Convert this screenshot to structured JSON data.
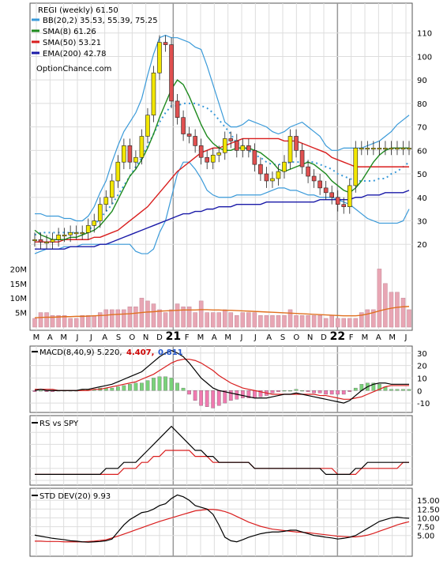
{
  "chart_data": [
    {
      "type": "line",
      "panel": "price",
      "title": "REGI (weekly) 61.50",
      "x_labels": [
        "M",
        "A",
        "M",
        "J",
        "J",
        "A",
        "S",
        "O",
        "N",
        "D",
        "21",
        "F",
        "M",
        "A",
        "M",
        "J",
        "J",
        "A",
        "S",
        "O",
        "N",
        "D",
        "22",
        "F",
        "M",
        "A",
        "M",
        "J"
      ],
      "ylim": [
        13,
        120
      ],
      "y_ticks": [
        20,
        30,
        40,
        50,
        60,
        70,
        80,
        90,
        100,
        110
      ],
      "volume_ticks": [
        "20M",
        "15M",
        "10M",
        "5M"
      ],
      "grid": true,
      "legend_position": "top-left",
      "legend": [
        {
          "label": "BB(20,2) 35.53, 55.39, 75.25",
          "color": "#3a9ad9"
        },
        {
          "label": "SMA(8) 61.26",
          "color": "#1e8a1e"
        },
        {
          "label": "SMA(50) 53.21",
          "color": "#d91e1e"
        },
        {
          "label": "EMA(200) 42.78",
          "color": "#1a1aa8"
        }
      ],
      "watermark": "OptionChance.com",
      "series": [
        {
          "name": "Close",
          "values": [
            22,
            21,
            21,
            22,
            24,
            24,
            25,
            25,
            25,
            28,
            30,
            37,
            40,
            47,
            55,
            62,
            55,
            57,
            66,
            75,
            93,
            106,
            105,
            81,
            74,
            67,
            66,
            62,
            57,
            55,
            58,
            59,
            65,
            64,
            60,
            62,
            60,
            54,
            50,
            47,
            48,
            51,
            55,
            66,
            60,
            53,
            49,
            47,
            44,
            42,
            40,
            37,
            36,
            45,
            61,
            61,
            61,
            61,
            61,
            61,
            61,
            61,
            61,
            61
          ]
        },
        {
          "name": "SMA(8)",
          "values": [
            26,
            24,
            23,
            22,
            22,
            22,
            23,
            23,
            24,
            25,
            26,
            28,
            31,
            34,
            39,
            44,
            49,
            52,
            56,
            61,
            67,
            74,
            80,
            86,
            90,
            88,
            83,
            77,
            71,
            66,
            63,
            61,
            60,
            60,
            61,
            61,
            61,
            60,
            59,
            57,
            55,
            52,
            51,
            52,
            53,
            54,
            55,
            54,
            52,
            50,
            47,
            45,
            43,
            42,
            44,
            47,
            51,
            55,
            58,
            60,
            61,
            61,
            61,
            61
          ]
        },
        {
          "name": "SMA(50)",
          "values": [
            21,
            21,
            21,
            21,
            21,
            22,
            22,
            22,
            22,
            22,
            23,
            23,
            24,
            25,
            26,
            28,
            30,
            32,
            34,
            36,
            39,
            42,
            45,
            48,
            51,
            53,
            55,
            57,
            59,
            60,
            61,
            61,
            62,
            63,
            64,
            65,
            65,
            65,
            65,
            65,
            65,
            65,
            64,
            64,
            64,
            63,
            62,
            61,
            60,
            59,
            57,
            56,
            55,
            54,
            53,
            53,
            53,
            53,
            53,
            53,
            53,
            53,
            53,
            53
          ]
        },
        {
          "name": "EMA(200)",
          "values": [
            18,
            18,
            18,
            18,
            18,
            18,
            19,
            19,
            19,
            19,
            19,
            20,
            20,
            21,
            22,
            23,
            24,
            25,
            26,
            27,
            28,
            29,
            30,
            31,
            32,
            33,
            33,
            34,
            34,
            35,
            35,
            36,
            36,
            36,
            37,
            37,
            37,
            37,
            37,
            38,
            38,
            38,
            38,
            38,
            38,
            38,
            38,
            38,
            39,
            39,
            39,
            39,
            39,
            39,
            40,
            40,
            41,
            41,
            41,
            42,
            42,
            42,
            42,
            43
          ]
        },
        {
          "name": "BB upper",
          "values": [
            33,
            33,
            32,
            32,
            32,
            31,
            31,
            30,
            30,
            32,
            36,
            42,
            47,
            55,
            62,
            68,
            72,
            76,
            82,
            92,
            101,
            108,
            109,
            108,
            108,
            107,
            106,
            104,
            103,
            96,
            88,
            80,
            72,
            70,
            70,
            71,
            73,
            72,
            71,
            70,
            68,
            67,
            68,
            70,
            71,
            72,
            70,
            68,
            66,
            62,
            60,
            60,
            61,
            61,
            61,
            61,
            62,
            63,
            64,
            66,
            68,
            71,
            73,
            75
          ]
        },
        {
          "name": "BB lower",
          "values": [
            16,
            17,
            18,
            18,
            18,
            19,
            19,
            19,
            20,
            20,
            20,
            20,
            20,
            20,
            20,
            20,
            20,
            17,
            16,
            16,
            18,
            25,
            30,
            40,
            50,
            55,
            55,
            52,
            48,
            43,
            41,
            40,
            40,
            40,
            41,
            41,
            41,
            41,
            41,
            42,
            43,
            44,
            44,
            43,
            43,
            42,
            41,
            41,
            40,
            40,
            40,
            39,
            38,
            37,
            35,
            33,
            31,
            30,
            29,
            29,
            29,
            29,
            30,
            35
          ]
        },
        {
          "name": "BB mid",
          "values": [
            24,
            25,
            25,
            25,
            25,
            25,
            25,
            25,
            25,
            26,
            28,
            31,
            34,
            37,
            41,
            45,
            49,
            53,
            57,
            62,
            67,
            72,
            76,
            79,
            79,
            80,
            80,
            80,
            79,
            78,
            76,
            73,
            70,
            67,
            63,
            62,
            60,
            58,
            57,
            55,
            54,
            54,
            54,
            55,
            55,
            55,
            55,
            55,
            54,
            53,
            52,
            50,
            49,
            48,
            47,
            47,
            47,
            47,
            48,
            48,
            50,
            51,
            53,
            55
          ]
        }
      ]
    },
    {
      "type": "bar",
      "panel": "volume",
      "values": [
        3,
        5,
        5,
        4,
        4,
        4,
        3,
        3,
        4,
        4,
        4,
        5,
        6,
        6,
        6,
        6,
        7,
        7,
        10,
        9,
        8,
        6,
        5,
        6,
        8,
        7,
        7,
        5,
        9,
        5,
        5,
        5,
        6,
        5,
        4,
        5,
        5,
        5,
        4,
        4,
        4,
        4,
        4,
        6,
        4,
        4,
        4,
        4,
        4,
        3,
        4,
        3,
        3,
        3,
        3,
        5,
        6,
        6,
        20,
        15,
        12,
        12,
        10,
        6
      ],
      "line_name": "Volume average",
      "line_values": [
        3.2,
        3.3,
        3.4,
        3.4,
        3.5,
        3.6,
        3.6,
        3.7,
        3.7,
        3.8,
        3.9,
        4,
        4.1,
        4.3,
        4.4,
        4.5,
        4.6,
        4.8,
        5.0,
        5.2,
        5.3,
        5.5,
        5.6,
        5.7,
        5.8,
        5.9,
        5.9,
        5.9,
        6.0,
        6.0,
        5.9,
        5.9,
        5.8,
        5.8,
        5.7,
        5.6,
        5.5,
        5.4,
        5.3,
        5.2,
        5.1,
        5.0,
        4.9,
        4.8,
        4.7,
        4.6,
        4.5,
        4.4,
        4.3,
        4.2,
        4.1,
        4.0,
        3.9,
        3.9,
        3.9,
        4.1,
        4.5,
        5.0,
        5.6,
        6.1,
        6.5,
        6.8,
        7.0,
        7.1
      ],
      "ylim": [
        0,
        25
      ]
    },
    {
      "type": "line",
      "panel": "macd",
      "label": "MACD(8,40,9) 5.220,",
      "value_signal": "4.407,",
      "value_hist": "0.811",
      "ylim": [
        -15,
        33
      ],
      "y_ticks": [
        30,
        20,
        10,
        0,
        -10
      ],
      "series": [
        {
          "name": "MACD",
          "values": [
            0,
            1,
            0,
            0,
            0,
            0,
            0,
            0,
            1,
            1,
            2,
            3,
            4,
            5,
            7,
            9,
            11,
            13,
            15,
            19,
            23,
            27,
            30,
            32,
            30,
            27,
            22,
            16,
            10,
            6,
            2,
            0,
            -1,
            -2,
            -3,
            -4,
            -5,
            -6,
            -6,
            -6,
            -5,
            -4,
            -3,
            -3,
            -2,
            -3,
            -4,
            -5,
            -6,
            -7,
            -8,
            -9,
            -10,
            -8,
            -4,
            0,
            3,
            5,
            6,
            6,
            5,
            5,
            5,
            5
          ]
        },
        {
          "name": "Signal",
          "values": [
            1,
            1,
            1,
            1,
            0,
            0,
            0,
            0,
            0,
            0,
            1,
            1,
            2,
            3,
            4,
            5,
            6,
            7,
            9,
            11,
            13,
            16,
            19,
            22,
            24,
            25,
            25,
            24,
            22,
            19,
            16,
            12,
            9,
            6,
            4,
            2,
            1,
            0,
            -1,
            -2,
            -3,
            -3,
            -3,
            -3,
            -3,
            -3,
            -3,
            -3,
            -4,
            -4,
            -5,
            -6,
            -7,
            -7,
            -6,
            -5,
            -3,
            -1,
            1,
            3,
            4,
            4,
            4,
            4
          ]
        },
        {
          "name": "Histogram",
          "values": [
            -1,
            0,
            -1,
            -1,
            0,
            0,
            0,
            0,
            1,
            1,
            1,
            2,
            2,
            2,
            3,
            4,
            5,
            6,
            6,
            8,
            10,
            11,
            11,
            10,
            6,
            2,
            -3,
            -8,
            -12,
            -13,
            -14,
            -12,
            -10,
            -8,
            -7,
            -6,
            -6,
            -6,
            -5,
            -4,
            -2,
            -1,
            0,
            0,
            1,
            0,
            -1,
            -2,
            -2,
            -3,
            -3,
            -3,
            -3,
            -1,
            2,
            5,
            6,
            6,
            5,
            3,
            1,
            1,
            1,
            1
          ]
        }
      ]
    },
    {
      "type": "line",
      "panel": "rs",
      "label": "RS vs SPY",
      "ylim": [
        0,
        10
      ],
      "series": [
        {
          "name": "RS",
          "values": [
            1,
            1,
            1,
            1,
            1,
            1,
            1,
            1,
            1,
            1,
            1,
            1,
            2,
            2,
            2,
            3,
            3,
            3,
            4,
            5,
            6,
            7,
            8,
            9,
            8,
            7,
            6,
            5,
            5,
            4,
            4,
            3,
            3,
            3,
            3,
            3,
            3,
            2,
            2,
            2,
            2,
            2,
            2,
            2,
            2,
            2,
            2,
            2,
            2,
            1,
            1,
            1,
            1,
            1,
            2,
            2,
            3,
            3,
            3,
            3,
            3,
            3,
            3,
            3
          ]
        },
        {
          "name": "RS average",
          "values": [
            1,
            1,
            1,
            1,
            1,
            1,
            1,
            1,
            1,
            1,
            1,
            1,
            1,
            1,
            1,
            2,
            2,
            2,
            3,
            3,
            4,
            4,
            5,
            5,
            5,
            5,
            5,
            4,
            4,
            4,
            3,
            3,
            3,
            3,
            3,
            3,
            3,
            2,
            2,
            2,
            2,
            2,
            2,
            2,
            2,
            2,
            2,
            2,
            2,
            2,
            2,
            1,
            1,
            1,
            1,
            2,
            2,
            2,
            2,
            2,
            2,
            2,
            3,
            3
          ]
        }
      ]
    },
    {
      "type": "line",
      "panel": "std",
      "label": "STD DEV(20) 9.93",
      "ylim": [
        0,
        17.5
      ],
      "y_ticks": [
        15,
        12.5,
        10,
        7.5,
        5
      ],
      "y_tick_labels": [
        "15.00",
        "12.50",
        "10.00",
        "7.50",
        "5.00"
      ],
      "series": [
        {
          "name": "STD DEV",
          "values": [
            5.1,
            4.8,
            4.5,
            4.2,
            4.0,
            3.8,
            3.5,
            3.4,
            3.2,
            3.1,
            3.2,
            3.3,
            3.5,
            4.0,
            6,
            8,
            9.5,
            10.5,
            11.5,
            11.8,
            12.5,
            13.5,
            14.0,
            15.5,
            16.5,
            16.0,
            15.0,
            13.5,
            13.0,
            12.5,
            11.0,
            8.0,
            4.5,
            3.5,
            3.2,
            3.8,
            4.5,
            5.0,
            5.5,
            5.8,
            6.0,
            6.0,
            6.2,
            6.5,
            6.5,
            6.0,
            5.5,
            5.0,
            4.8,
            4.5,
            4.3,
            4.0,
            4.2,
            4.5,
            5.0,
            6.0,
            7.0,
            8.0,
            9.0,
            9.5,
            10.0,
            10.2,
            10.0,
            9.9
          ]
        },
        {
          "name": "STD DEV average",
          "values": [
            3.4,
            3.4,
            3.3,
            3.3,
            3.3,
            3.2,
            3.2,
            3.2,
            3.2,
            3.3,
            3.4,
            3.6,
            3.8,
            4.3,
            4.8,
            5.4,
            6.0,
            6.6,
            7.2,
            7.8,
            8.4,
            9.0,
            9.5,
            10.0,
            10.5,
            11.0,
            11.5,
            12.0,
            12.2,
            12.4,
            12.4,
            12.2,
            11.8,
            11.2,
            10.4,
            9.6,
            8.8,
            8.2,
            7.6,
            7.2,
            6.8,
            6.6,
            6.4,
            6.2,
            6.0,
            5.9,
            5.8,
            5.6,
            5.4,
            5.2,
            5.0,
            4.8,
            4.7,
            4.6,
            4.6,
            4.8,
            5.1,
            5.6,
            6.2,
            6.8,
            7.4,
            8.0,
            8.5,
            8.9
          ]
        }
      ]
    }
  ],
  "colors": {
    "bb": "#3a9ad9",
    "bb_mid": "#3a9ad9",
    "bb_upper_hi": "#e6d61a",
    "sma8": "#1e8a1e",
    "sma50": "#d91e1e",
    "ema200": "#1a1aa8",
    "close": "#000000",
    "candle_up": "#f2e600",
    "candle_down": "#e05050",
    "volume": "#e8a6b4",
    "volume_line": "#e07020",
    "hist_pos": "#7ad27a",
    "hist_neg": "#f07ab0",
    "macd_signal_value": "#cc0000",
    "macd_hist_value": "#2255cc"
  }
}
